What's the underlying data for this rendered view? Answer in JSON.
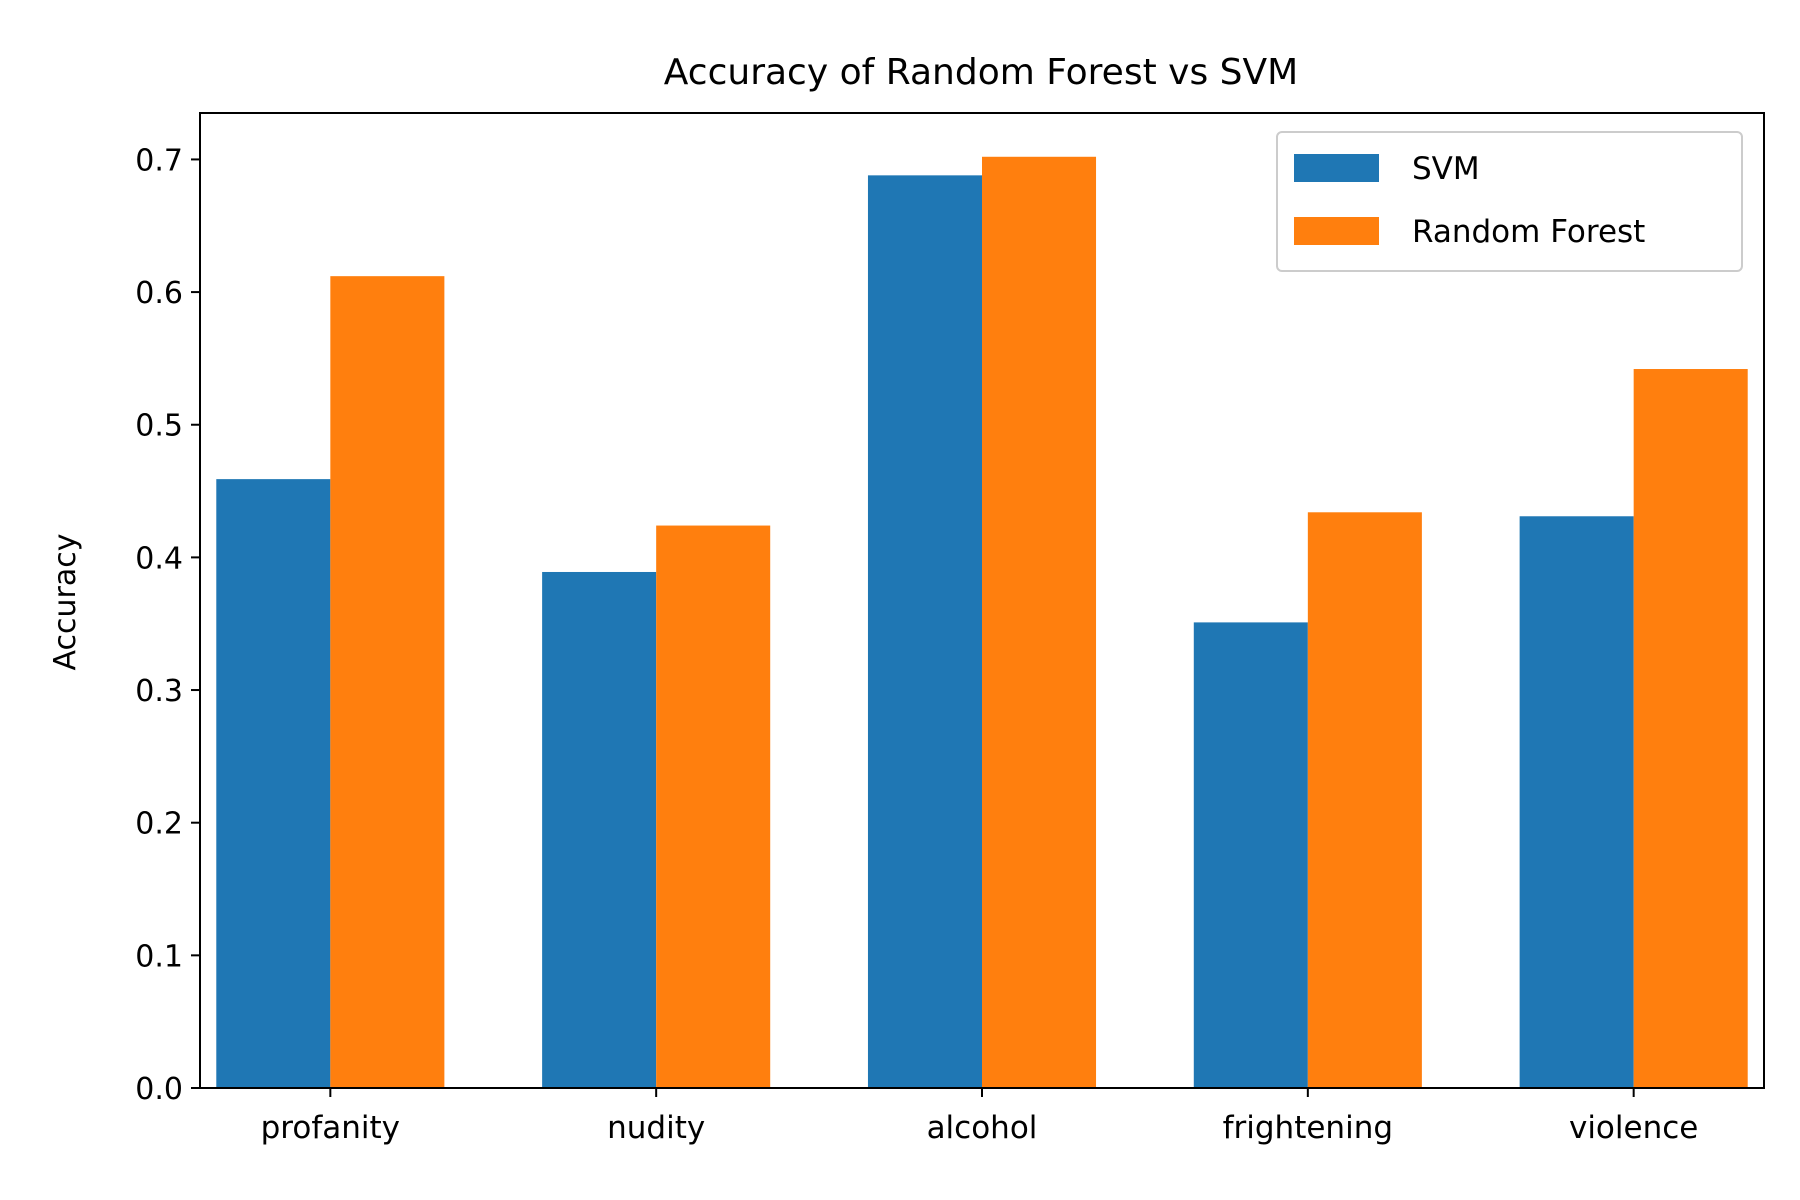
{
  "chart_data": {
    "type": "bar",
    "title": "Accuracy of Random Forest vs SVM",
    "xlabel": "",
    "ylabel": "Accuracy",
    "categories": [
      "profanity",
      "nudity",
      "alcohol",
      "frightening",
      "violence"
    ],
    "series": [
      {
        "name": "SVM",
        "color": "#1f77b4",
        "values": [
          0.459,
          0.389,
          0.688,
          0.351,
          0.431
        ]
      },
      {
        "name": "Random Forest",
        "color": "#ff7f0e",
        "values": [
          0.612,
          0.424,
          0.702,
          0.434,
          0.542
        ]
      }
    ],
    "ylim": [
      0,
      0.735
    ],
    "yticks": [
      0.0,
      0.1,
      0.2,
      0.3,
      0.4,
      0.5,
      0.6,
      0.7
    ],
    "ytick_labels": [
      "0.0",
      "0.1",
      "0.2",
      "0.3",
      "0.4",
      "0.5",
      "0.6",
      "0.7"
    ],
    "grid": false,
    "legend_position": "top-right"
  }
}
